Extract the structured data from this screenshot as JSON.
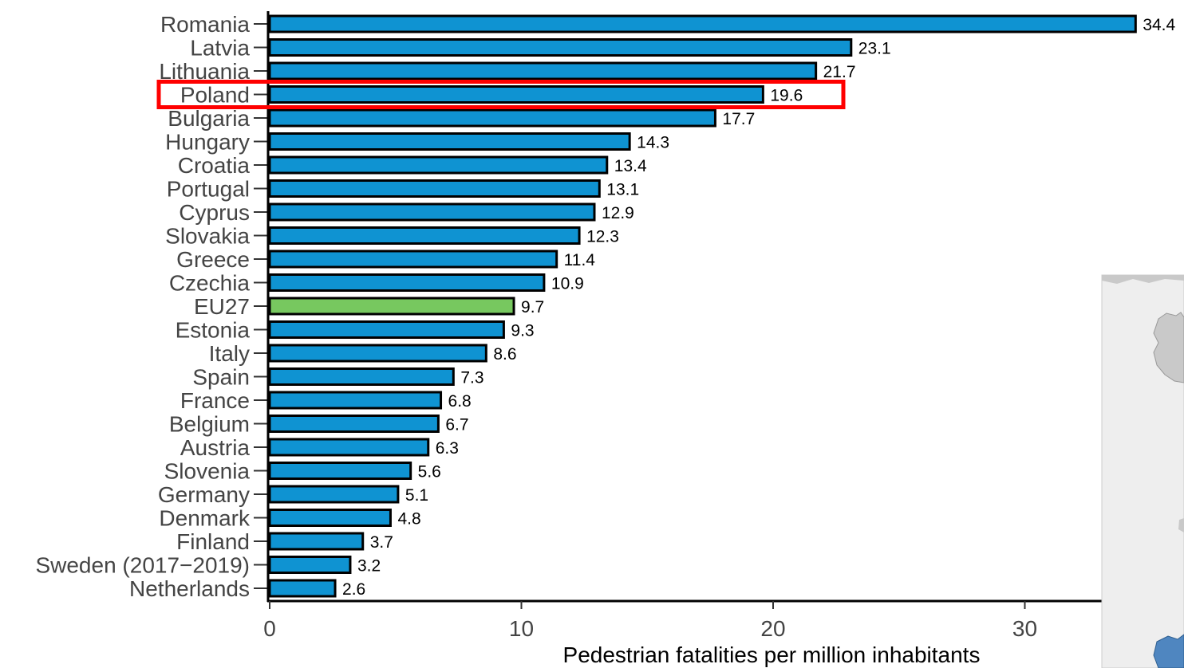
{
  "chart_data": {
    "type": "bar",
    "orientation": "horizontal",
    "categories": [
      "Romania",
      "Latvia",
      "Lithuania",
      "Poland",
      "Bulgaria",
      "Hungary",
      "Croatia",
      "Portugal",
      "Cyprus",
      "Slovakia",
      "Greece",
      "Czechia",
      "EU27",
      "Estonia",
      "Italy",
      "Spain",
      "France",
      "Belgium",
      "Austria",
      "Slovenia",
      "Germany",
      "Denmark",
      "Finland",
      "Sweden (2017−2019)",
      "Netherlands"
    ],
    "values": [
      34.4,
      23.1,
      21.7,
      19.6,
      17.7,
      14.3,
      13.4,
      13.1,
      12.9,
      12.3,
      11.4,
      10.9,
      9.7,
      9.3,
      8.6,
      7.3,
      6.8,
      6.7,
      6.3,
      5.6,
      5.1,
      4.8,
      3.7,
      3.2,
      2.6
    ],
    "value_labels": [
      "34.4",
      "23.1",
      "21.7",
      "19.6",
      "17.7",
      "14.3",
      "13.4",
      "13.1",
      "12.9",
      "12.3",
      "11.4",
      "10.9",
      "9.7",
      "9.3",
      "8.6",
      "7.3",
      "6.8",
      "6.7",
      "6.3",
      "5.6",
      "5.1",
      "4.8",
      "3.7",
      "3.2",
      "2.6"
    ],
    "highlighted_category": "EU27",
    "annotated_category": "Poland",
    "xlabel": "Pedestrian fatalities per million inhabitants",
    "ylabel": "",
    "xlim": [
      0,
      34.4
    ],
    "x_ticks": [
      0,
      10,
      20,
      30
    ],
    "x_tick_labels": [
      "0",
      "10",
      "20",
      "30"
    ],
    "grid": false,
    "colors": {
      "bar": "#0f93d2",
      "highlight_bar": "#77c85f",
      "bar_outline": "#000000",
      "annotation_box": "#ff0000",
      "map_background": "#eeeeee",
      "map_land": "#c9c9c9",
      "map_sea_blue": "#4f86c0"
    }
  }
}
